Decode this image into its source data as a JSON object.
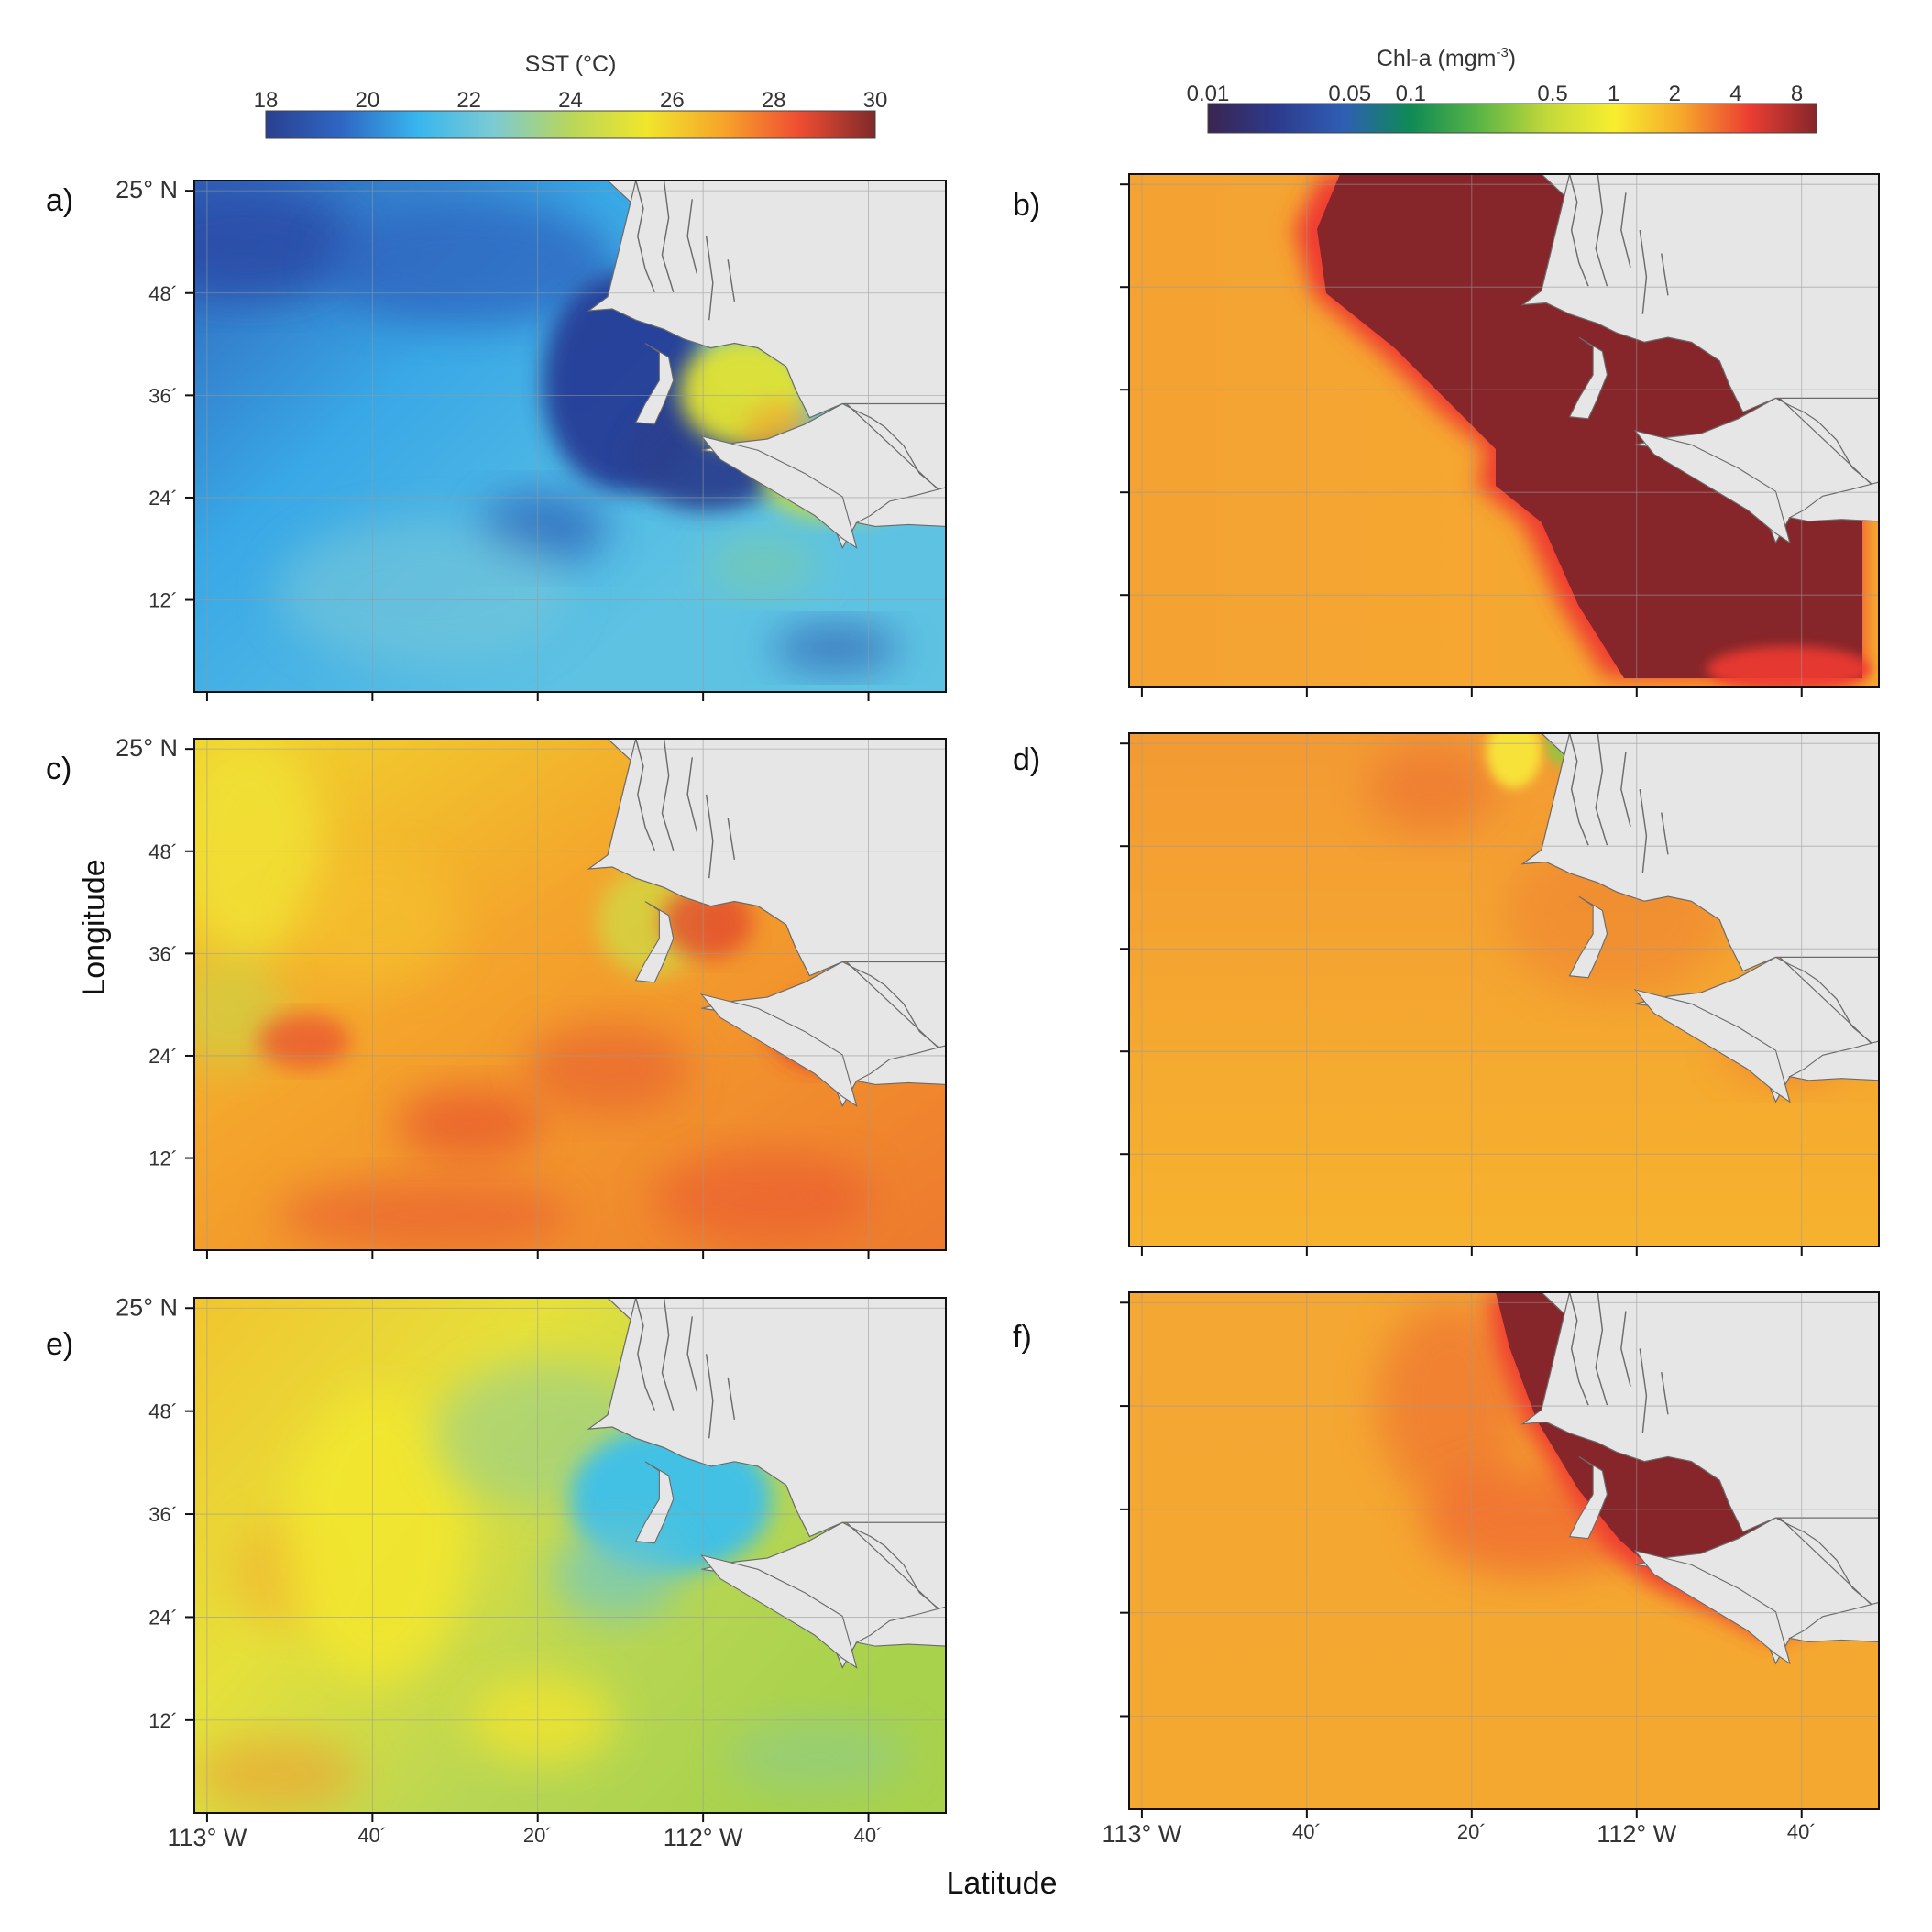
{
  "colorbars": {
    "sst": {
      "title": "SST (°C)",
      "ticks": [
        "18",
        "20",
        "22",
        "24",
        "26",
        "28",
        "30"
      ],
      "stops": [
        "#2a3f8f",
        "#2f67c4",
        "#38b6ee",
        "#7ccbd2",
        "#b9d65a",
        "#f0e62c",
        "#f6a52a",
        "#ef4d32",
        "#7f2a2a"
      ]
    },
    "chla": {
      "title": "Chl-a (mgm",
      "title_sup": "-3",
      "title_end": ")",
      "ticks": [
        "0.01",
        "0.05",
        "0.1",
        "0.5",
        "1",
        "2",
        "4",
        "8"
      ],
      "stops": [
        "#3a2550",
        "#2d3a8c",
        "#2f5eb4",
        "#0f8a55",
        "#59b446",
        "#c2d83a",
        "#f7ee2f",
        "#f6a82a",
        "#ec3e33",
        "#86262a"
      ]
    }
  },
  "panels": [
    {
      "label": "a)",
      "variable": "SST",
      "map_style": "sst-cool-upwelling"
    },
    {
      "label": "b)",
      "variable": "Chl-a",
      "map_style": "chl-high-coastal-bloom"
    },
    {
      "label": "c)",
      "variable": "SST",
      "map_style": "sst-warm"
    },
    {
      "label": "d)",
      "variable": "Chl-a",
      "map_style": "chl-low"
    },
    {
      "label": "e)",
      "variable": "SST",
      "map_style": "sst-intermediate"
    },
    {
      "label": "f)",
      "variable": "Chl-a",
      "map_style": "chl-moderate-coastal"
    }
  ],
  "axes": {
    "lat_ticks": [
      "25° N",
      "48´",
      "36´",
      "24´",
      "12´"
    ],
    "lon_ticks_left": [
      "113° W",
      "40´",
      "20´",
      "112° W",
      "40´"
    ],
    "lon_ticks_right": [
      "113° W",
      "40´",
      "20´",
      "112° W",
      "40´"
    ],
    "y_title": "Longitude",
    "x_title": "Latitude"
  },
  "colors": {
    "land": "#e6e6e6",
    "coast": "#6b6b6b",
    "grid": "#9a9a9a"
  }
}
